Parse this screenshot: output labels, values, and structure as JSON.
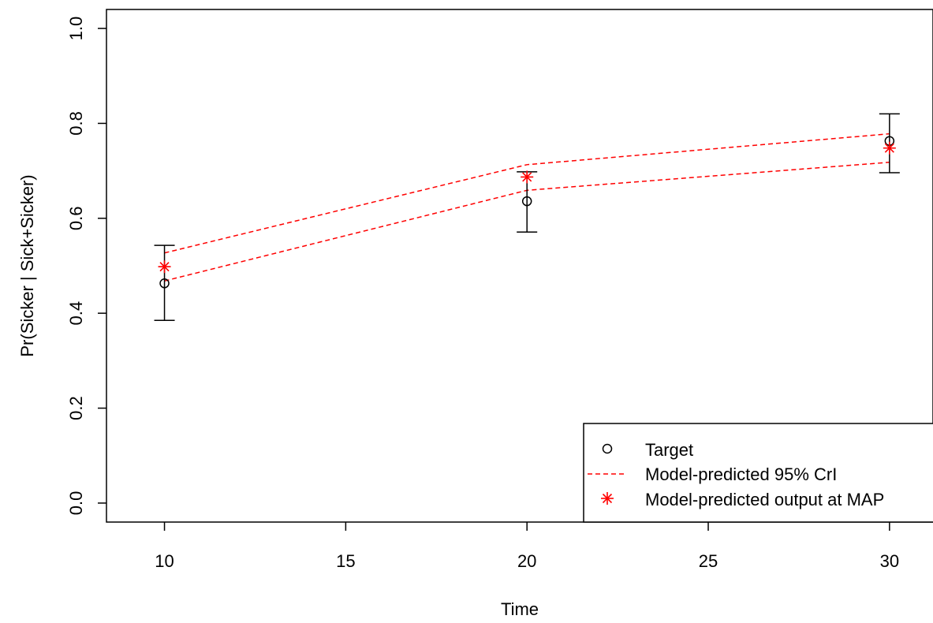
{
  "chart_data": {
    "type": "scatter",
    "xlabel": "Time",
    "ylabel": "Pr(Sicker | Sick+Sicker)",
    "xlim": [
      8.4,
      31.2
    ],
    "ylim": [
      -0.04,
      1.04
    ],
    "x_ticks": [
      "10",
      "15",
      "20",
      "25",
      "30"
    ],
    "y_ticks": [
      "0.0",
      "0.2",
      "0.4",
      "0.6",
      "0.8",
      "1.0"
    ],
    "grid": false,
    "legend_position": "bottom-right",
    "colors": {
      "axis": "#000000",
      "target": "#000000",
      "model": "#ff0000"
    },
    "series": [
      {
        "name": "Target",
        "kind": "points-with-errorbars",
        "x": [
          10,
          20,
          30
        ],
        "y": [
          0.463,
          0.636,
          0.763
        ],
        "lower": [
          0.385,
          0.571,
          0.696
        ],
        "upper": [
          0.543,
          0.698,
          0.82
        ]
      },
      {
        "name": "Model-predicted 95% CrI",
        "kind": "dashed-lines",
        "x": [
          10,
          20,
          30
        ],
        "lower": [
          0.468,
          0.659,
          0.718
        ],
        "upper": [
          0.527,
          0.713,
          0.778
        ]
      },
      {
        "name": "Model-predicted output at MAP",
        "kind": "asterisk-points",
        "x": [
          10,
          20,
          30
        ],
        "y": [
          0.498,
          0.687,
          0.748
        ]
      }
    ]
  }
}
